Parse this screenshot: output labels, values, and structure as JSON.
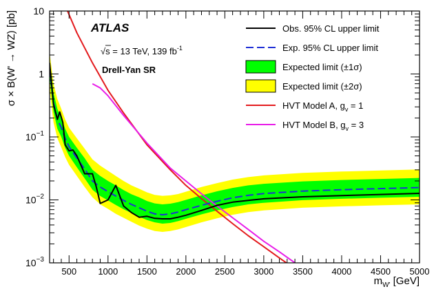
{
  "chart_data": {
    "type": "line",
    "yscale": "log",
    "xlabel": "m",
    "xlabel_sub": "W'",
    "xlabel_unit": "[GeV]",
    "ylabel": "σ × B(W' → WZ) [pb]",
    "xlim": [
      250,
      5000
    ],
    "ylim": [
      0.001,
      10
    ],
    "x_ticks": [
      500,
      1000,
      1500,
      2000,
      2500,
      3000,
      3500,
      4000,
      4500,
      5000
    ],
    "y_ticks": [
      0.001,
      0.01,
      0.1,
      1,
      10
    ],
    "y_tick_labels": [
      {
        "base": "10",
        "exp": "−3"
      },
      {
        "base": "10",
        "exp": "−2"
      },
      {
        "base": "10",
        "exp": "−1"
      },
      {
        "base": "1",
        "exp": ""
      },
      {
        "base": "10",
        "exp": ""
      }
    ],
    "annotations": {
      "experiment": "ATLAS",
      "energy_prefix": "√s = 13 TeV, 139 fb",
      "energy_exp": "-1",
      "region": "Drell-Yan SR"
    },
    "legend_placement": "top-right",
    "series": [
      {
        "id": "obs",
        "name": "Obs. 95% CL upper limit",
        "style": "line",
        "color": "#000000",
        "x": [
          250,
          300,
          350,
          380,
          420,
          450,
          500,
          550,
          600,
          700,
          800,
          850,
          900,
          1000,
          1100,
          1200,
          1300,
          1400,
          1500,
          1600,
          1700,
          1800,
          1900,
          2000,
          2200,
          2400,
          2600,
          2800,
          3000,
          3500,
          4000,
          4500,
          5000
        ],
        "y": [
          1.5,
          0.33,
          0.19,
          0.25,
          0.17,
          0.075,
          0.06,
          0.062,
          0.05,
          0.026,
          0.026,
          0.016,
          0.0088,
          0.01,
          0.017,
          0.008,
          0.0063,
          0.0053,
          0.0055,
          0.0051,
          0.005,
          0.005,
          0.0053,
          0.0057,
          0.0068,
          0.0082,
          0.0092,
          0.0098,
          0.0104,
          0.0112,
          0.0117,
          0.0122,
          0.0127
        ]
      },
      {
        "id": "exp",
        "name": "Exp. 95% CL upper limit",
        "style": "dashed",
        "color": "#1f2fd6",
        "x": [
          250,
          300,
          350,
          400,
          450,
          500,
          600,
          700,
          800,
          900,
          1000,
          1100,
          1200,
          1300,
          1400,
          1500,
          1600,
          1700,
          1800,
          1900,
          2000,
          2200,
          2400,
          2600,
          2800,
          3000,
          3500,
          4000,
          4500,
          5000
        ],
        "y": [
          1.2,
          0.35,
          0.19,
          0.14,
          0.095,
          0.07,
          0.046,
          0.031,
          0.02,
          0.016,
          0.0135,
          0.0115,
          0.0098,
          0.0085,
          0.0075,
          0.0066,
          0.006,
          0.0058,
          0.006,
          0.0064,
          0.007,
          0.0082,
          0.0095,
          0.0108,
          0.0118,
          0.0126,
          0.0138,
          0.0145,
          0.0151,
          0.0157
        ]
      },
      {
        "id": "hvt_a",
        "name": "HVT Model A, g",
        "name_sub": "v",
        "name_suffix": " = 1",
        "style": "line",
        "color": "#e3191c",
        "x": [
          480,
          600,
          800,
          1000,
          1200,
          1500,
          1800,
          2000,
          2200,
          2400,
          2600,
          2800,
          3000,
          3200,
          3290
        ],
        "y": [
          10,
          4.5,
          1.5,
          0.55,
          0.24,
          0.075,
          0.03,
          0.017,
          0.0105,
          0.0066,
          0.0042,
          0.0027,
          0.0018,
          0.0012,
          0.001
        ]
      },
      {
        "id": "hvt_b",
        "name": "HVT Model B, g",
        "name_sub": "v",
        "name_suffix": " = 3",
        "style": "line",
        "color": "#e81ce8",
        "x": [
          800,
          900,
          1000,
          1200,
          1500,
          1800,
          2000,
          2200,
          2400,
          2600,
          2800,
          3000,
          3200,
          3400
        ],
        "y": [
          0.7,
          0.6,
          0.45,
          0.22,
          0.08,
          0.032,
          0.02,
          0.0125,
          0.008,
          0.0052,
          0.0034,
          0.0022,
          0.0015,
          0.001
        ]
      }
    ],
    "bands": [
      {
        "id": "band2",
        "name": "Expected limit (±2σ)",
        "color": "#ffff00",
        "x": [
          250,
          300,
          350,
          400,
          450,
          500,
          600,
          700,
          800,
          900,
          1000,
          1100,
          1200,
          1300,
          1400,
          1500,
          1600,
          1700,
          1800,
          1900,
          2000,
          2200,
          2400,
          2600,
          2800,
          3000,
          3500,
          4000,
          4500,
          5000
        ],
        "upper": [
          2.2,
          0.7,
          0.4,
          0.28,
          0.19,
          0.14,
          0.095,
          0.065,
          0.044,
          0.035,
          0.029,
          0.024,
          0.02,
          0.017,
          0.015,
          0.0132,
          0.012,
          0.0116,
          0.0118,
          0.0124,
          0.0135,
          0.016,
          0.0185,
          0.021,
          0.023,
          0.0245,
          0.0268,
          0.0282,
          0.0293,
          0.0305
        ],
        "lower": [
          0.55,
          0.17,
          0.095,
          0.068,
          0.048,
          0.036,
          0.024,
          0.016,
          0.011,
          0.0085,
          0.0072,
          0.006,
          0.0052,
          0.0045,
          0.0039,
          0.0035,
          0.0032,
          0.0031,
          0.0032,
          0.0034,
          0.0037,
          0.0044,
          0.0051,
          0.0058,
          0.0064,
          0.0068,
          0.0075,
          0.0079,
          0.0082,
          0.0085
        ]
      },
      {
        "id": "band1",
        "name": "Expected limit (±1σ)",
        "color": "#00ff00",
        "x": [
          250,
          300,
          350,
          400,
          450,
          500,
          600,
          700,
          800,
          900,
          1000,
          1100,
          1200,
          1300,
          1400,
          1500,
          1600,
          1700,
          1800,
          1900,
          2000,
          2200,
          2400,
          2600,
          2800,
          3000,
          3500,
          4000,
          4500,
          5000
        ],
        "upper": [
          1.7,
          0.5,
          0.28,
          0.2,
          0.135,
          0.1,
          0.067,
          0.046,
          0.03,
          0.024,
          0.02,
          0.017,
          0.0143,
          0.0123,
          0.011,
          0.0096,
          0.0088,
          0.0085,
          0.0087,
          0.0092,
          0.01,
          0.0118,
          0.0137,
          0.0155,
          0.017,
          0.018,
          0.0197,
          0.0207,
          0.0215,
          0.0223
        ],
        "lower": [
          0.85,
          0.25,
          0.135,
          0.1,
          0.067,
          0.05,
          0.033,
          0.022,
          0.0145,
          0.0115,
          0.0098,
          0.0083,
          0.0071,
          0.0062,
          0.0054,
          0.0048,
          0.0044,
          0.0042,
          0.0043,
          0.0046,
          0.005,
          0.0059,
          0.0068,
          0.0077,
          0.0085,
          0.009,
          0.0099,
          0.0104,
          0.0108,
          0.0112
        ]
      }
    ]
  }
}
